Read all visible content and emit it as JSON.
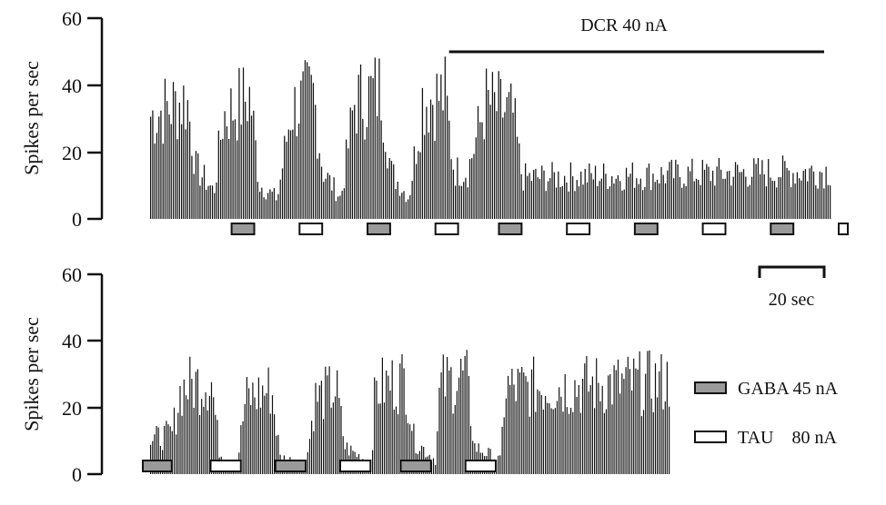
{
  "colors": {
    "ink": "#111111",
    "gaba_fill": "#9a9a9a",
    "tau_fill": "#ffffff",
    "background": "#ffffff"
  },
  "annotations": {
    "dcr_label": "DCR  40 nA",
    "scale_bar_label": "20 sec"
  },
  "legend": {
    "gaba_label": "GABA 45 nA",
    "tau_label": "TAU    80 nA"
  },
  "chart_data": [
    {
      "type": "bar",
      "panel": "top",
      "ylabel": "Spikes per sec",
      "ylim": [
        0,
        60
      ],
      "yticks": [
        0,
        20,
        40,
        60
      ],
      "xlim": [
        0,
        150
      ],
      "x_units": "sec",
      "dcr_period": [
        66,
        150
      ],
      "ejection_periods": [
        {
          "drug": "GABA",
          "start": 18,
          "end": 23
        },
        {
          "drug": "TAU",
          "start": 33,
          "end": 38
        },
        {
          "drug": "GABA",
          "start": 48,
          "end": 53
        },
        {
          "drug": "TAU",
          "start": 63,
          "end": 68
        },
        {
          "drug": "GABA",
          "start": 77,
          "end": 82
        },
        {
          "drug": "TAU",
          "start": 92,
          "end": 97
        },
        {
          "drug": "GABA",
          "start": 107,
          "end": 112
        },
        {
          "drug": "TAU",
          "start": 122,
          "end": 127
        },
        {
          "drug": "GABA",
          "start": 137,
          "end": 142
        },
        {
          "drug": "TAU",
          "start": 152,
          "end": 157
        }
      ],
      "rate_profile": [
        {
          "x": 0,
          "y": 30
        },
        {
          "x": 8,
          "y": 35
        },
        {
          "x": 10,
          "y": 15
        },
        {
          "x": 14,
          "y": 8
        },
        {
          "x": 16,
          "y": 30
        },
        {
          "x": 22,
          "y": 36
        },
        {
          "x": 24,
          "y": 10
        },
        {
          "x": 28,
          "y": 6
        },
        {
          "x": 31,
          "y": 32
        },
        {
          "x": 36,
          "y": 36
        },
        {
          "x": 38,
          "y": 14
        },
        {
          "x": 42,
          "y": 6
        },
        {
          "x": 45,
          "y": 34
        },
        {
          "x": 51,
          "y": 38
        },
        {
          "x": 53,
          "y": 14
        },
        {
          "x": 57,
          "y": 6
        },
        {
          "x": 60,
          "y": 35
        },
        {
          "x": 65,
          "y": 36
        },
        {
          "x": 67,
          "y": 14
        },
        {
          "x": 70,
          "y": 14
        },
        {
          "x": 74,
          "y": 34
        },
        {
          "x": 80,
          "y": 30
        },
        {
          "x": 82,
          "y": 12
        },
        {
          "x": 150,
          "y": 14
        }
      ]
    },
    {
      "type": "bar",
      "panel": "bottom",
      "ylabel": "Spikes per sec",
      "ylim": [
        0,
        60
      ],
      "yticks": [
        0,
        20,
        40,
        60
      ],
      "xlim": [
        0,
        120
      ],
      "x_units": "sec",
      "ejection_periods": [
        {
          "drug": "GABA",
          "start": -2,
          "end": 5
        },
        {
          "drug": "TAU",
          "start": 14,
          "end": 21
        },
        {
          "drug": "GABA",
          "start": 29,
          "end": 36
        },
        {
          "drug": "TAU",
          "start": 44,
          "end": 51
        },
        {
          "drug": "GABA",
          "start": 58,
          "end": 65
        },
        {
          "drug": "TAU",
          "start": 73,
          "end": 80
        }
      ],
      "rate_profile": [
        {
          "x": 0,
          "y": 10
        },
        {
          "x": 5,
          "y": 12
        },
        {
          "x": 7,
          "y": 25
        },
        {
          "x": 14,
          "y": 28
        },
        {
          "x": 16,
          "y": 6
        },
        {
          "x": 20,
          "y": 3
        },
        {
          "x": 22,
          "y": 22
        },
        {
          "x": 28,
          "y": 25
        },
        {
          "x": 30,
          "y": 5
        },
        {
          "x": 36,
          "y": 3
        },
        {
          "x": 38,
          "y": 22
        },
        {
          "x": 43,
          "y": 25
        },
        {
          "x": 45,
          "y": 8
        },
        {
          "x": 51,
          "y": 3
        },
        {
          "x": 52,
          "y": 25
        },
        {
          "x": 59,
          "y": 28
        },
        {
          "x": 61,
          "y": 10
        },
        {
          "x": 66,
          "y": 4
        },
        {
          "x": 67,
          "y": 26
        },
        {
          "x": 73,
          "y": 29
        },
        {
          "x": 75,
          "y": 8
        },
        {
          "x": 81,
          "y": 4
        },
        {
          "x": 82,
          "y": 25
        },
        {
          "x": 120,
          "y": 27
        }
      ]
    }
  ]
}
